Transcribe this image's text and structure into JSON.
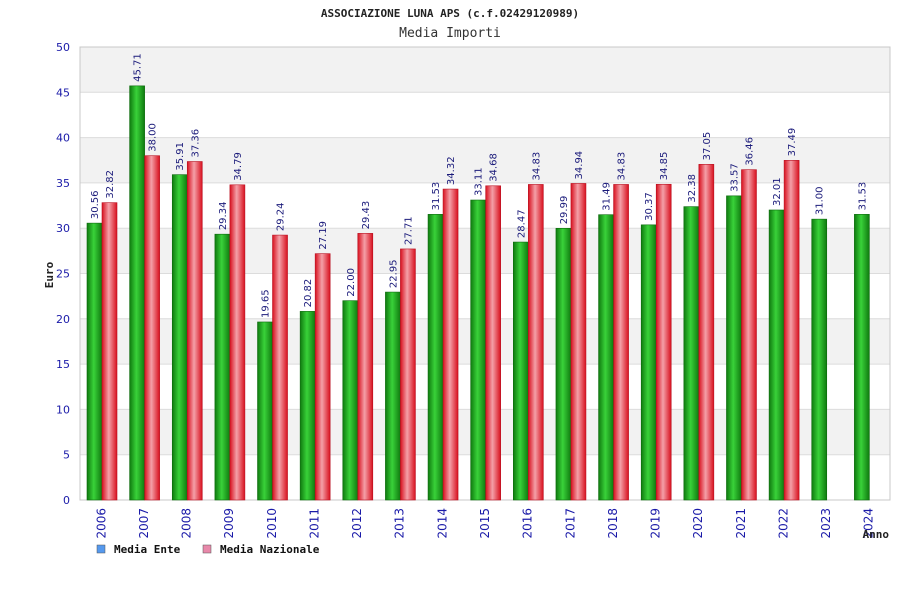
{
  "chart_data": {
    "type": "bar",
    "title": "ASSOCIAZIONE LUNA APS (c.f.02429120989)",
    "subtitle": "Media Importi",
    "xlabel": "Anno",
    "ylabel": "Euro",
    "ylim": [
      0,
      50
    ],
    "yticks": [
      0,
      5,
      10,
      15,
      20,
      25,
      30,
      35,
      40,
      45,
      50
    ],
    "grid": true,
    "legend_position": "bottom-left",
    "categories": [
      "2006",
      "2007",
      "2008",
      "2009",
      "2010",
      "2011",
      "2012",
      "2013",
      "2014",
      "2015",
      "2016",
      "2017",
      "2018",
      "2019",
      "2020",
      "2021",
      "2022",
      "2023",
      "2024"
    ],
    "series": [
      {
        "name": "Media Ente",
        "color": "#22aa22",
        "legend_color": "#5599ee",
        "values": [
          30.56,
          45.71,
          35.91,
          29.34,
          19.65,
          20.82,
          22.0,
          22.95,
          31.53,
          33.11,
          28.47,
          29.99,
          31.49,
          30.37,
          32.38,
          33.57,
          32.01,
          31.0,
          31.53
        ],
        "labels": [
          "30.56",
          "45.71",
          "35.91",
          "29.34",
          "19.65",
          "20.82",
          "22.00",
          "22.95",
          "31.53",
          "33.11",
          "28.47",
          "29.99",
          "31.49",
          "30.37",
          "32.38",
          "33.57",
          "32.01",
          "31.00",
          "31.53"
        ]
      },
      {
        "name": "Media Nazionale",
        "color": "#e8283a",
        "legend_color": "#e888aa",
        "values": [
          32.82,
          38.0,
          37.36,
          34.79,
          29.24,
          27.19,
          29.43,
          27.71,
          34.32,
          34.68,
          34.83,
          34.94,
          34.83,
          34.85,
          37.05,
          36.46,
          37.49,
          null,
          null
        ],
        "labels": [
          "32.82",
          "38.00",
          "37.36",
          "34.79",
          "29.24",
          "27.19",
          "29.43",
          "27.71",
          "34.32",
          "34.68",
          "34.83",
          "34.94",
          "34.83",
          "34.85",
          "37.05",
          "36.46",
          "37.49",
          "",
          ""
        ]
      }
    ]
  }
}
